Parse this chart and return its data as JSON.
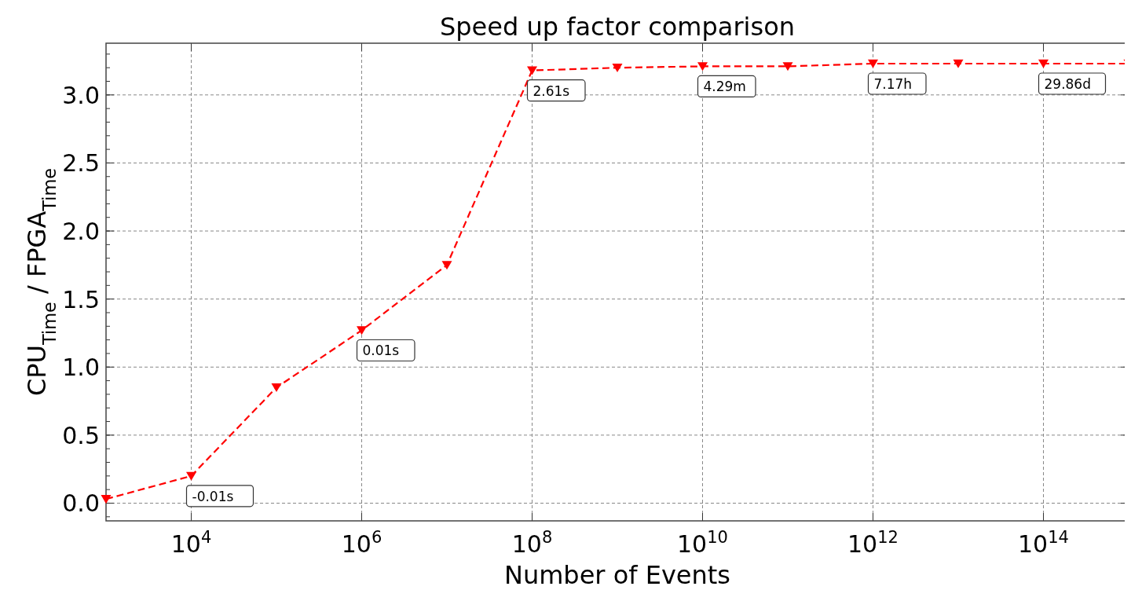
{
  "chart_data": {
    "type": "line",
    "title": "Speed up factor comparison",
    "xlabel": "Number of Events",
    "ylabel": "CPU$_{Time}$ / FPGA$_{Time}$",
    "x": [
      1000,
      10000,
      100000,
      1000000,
      10000000,
      100000000,
      1000000000,
      10000000000,
      100000000000,
      1000000000000,
      10000000000000,
      100000000000000,
      1000000000000000
    ],
    "series": [
      {
        "color": "#ff0000",
        "values": [
          0.03,
          0.2,
          0.85,
          1.27,
          1.75,
          3.18,
          3.2,
          3.21,
          3.21,
          3.23,
          3.23,
          3.23,
          3.23
        ]
      }
    ],
    "log": "x",
    "xlim": [
      1000,
      1000000000000000
    ],
    "ylim": [
      -0.13,
      3.38
    ],
    "xticks": [
      {
        "value": 10000,
        "label": "10$^{4}$"
      },
      {
        "value": 1000000,
        "label": "10$^{6}$"
      },
      {
        "value": 100000000,
        "label": "10$^{8}$"
      },
      {
        "value": 10000000000,
        "label": "10$^{10}$"
      },
      {
        "value": 1000000000000,
        "label": "10$^{12}$"
      },
      {
        "value": 100000000000000,
        "label": "10$^{14}$"
      }
    ],
    "yticks": [
      {
        "value": 0,
        "label": "0.0"
      },
      {
        "value": 0.5,
        "label": "0.5"
      },
      {
        "value": 1,
        "label": "1.0"
      },
      {
        "value": 1.5,
        "label": "1.5"
      },
      {
        "value": 2,
        "label": "2.0"
      },
      {
        "value": 2.5,
        "label": "2.5"
      },
      {
        "value": 3,
        "label": "3.0"
      }
    ],
    "grid": true,
    "marker": "triangle",
    "line_style": "dashed",
    "annotations": [
      {
        "text": "-0.01s",
        "x": 10000,
        "y": 0.2
      },
      {
        "text": "0.01s",
        "x": 1000000,
        "y": 1.27
      },
      {
        "text": "2.61s",
        "x": 100000000,
        "y": 3.18
      },
      {
        "text": "4.29m",
        "x": 10000000000,
        "y": 3.21
      },
      {
        "text": "7.17h",
        "x": 1000000000000,
        "y": 3.23
      },
      {
        "text": "29.86d",
        "x": 100000000000000,
        "y": 3.23
      }
    ]
  }
}
